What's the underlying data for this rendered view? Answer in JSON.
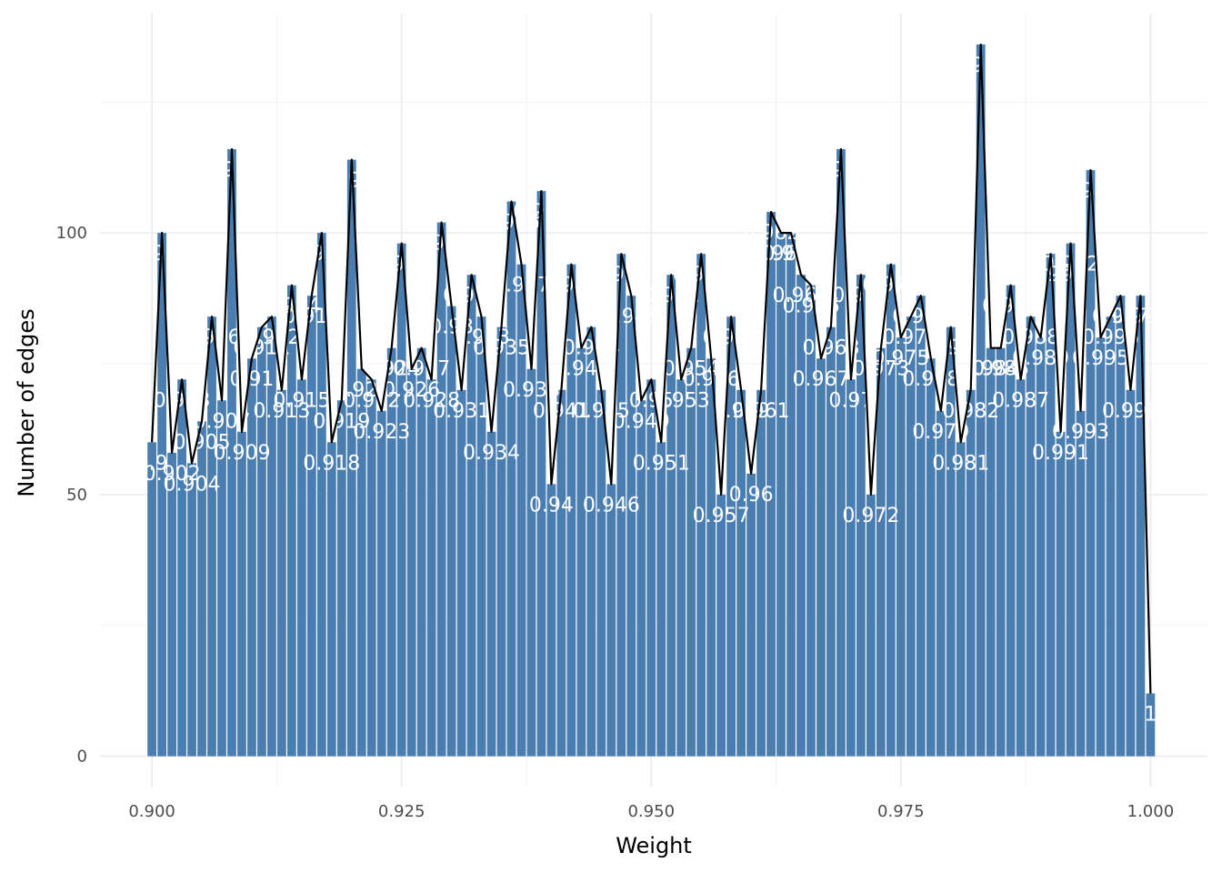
{
  "chart_data": {
    "type": "bar",
    "title": "",
    "xlabel": "Weight",
    "ylabel": "Number of edges",
    "xlim": [
      0.8948,
      1.0057
    ],
    "ylim": [
      -5.8,
      141.9
    ],
    "x_ticks": [
      "0.900",
      "0.925",
      "0.950",
      "0.975",
      "1.000"
    ],
    "x_tick_values": [
      0.9,
      0.925,
      0.95,
      0.975,
      1.0
    ],
    "y_ticks": [
      "0",
      "50",
      "100"
    ],
    "y_tick_values": [
      0,
      50,
      100
    ],
    "grid": true,
    "legend": "none",
    "bar_color": "#4A7EB0",
    "line_color": "#000000",
    "label_color": "#ffffff",
    "series": [
      {
        "x": [
          0.9,
          0.901,
          0.902,
          0.903,
          0.904,
          0.905,
          0.906,
          0.907,
          0.908,
          0.909,
          0.91,
          0.911,
          0.912,
          0.913,
          0.914,
          0.915,
          0.916,
          0.917,
          0.918,
          0.919,
          0.92,
          0.921,
          0.922,
          0.923,
          0.924,
          0.925,
          0.926,
          0.927,
          0.928,
          0.929,
          0.93,
          0.931,
          0.932,
          0.933,
          0.934,
          0.935,
          0.936,
          0.937,
          0.938,
          0.939,
          0.94,
          0.941,
          0.942,
          0.943,
          0.944,
          0.945,
          0.946,
          0.947,
          0.948,
          0.949,
          0.95,
          0.951,
          0.952,
          0.953,
          0.954,
          0.955,
          0.956,
          0.957,
          0.958,
          0.959,
          0.96,
          0.961,
          0.962,
          0.963,
          0.964,
          0.965,
          0.966,
          0.967,
          0.968,
          0.969,
          0.97,
          0.971,
          0.972,
          0.973,
          0.974,
          0.975,
          0.976,
          0.977,
          0.978,
          0.979,
          0.98,
          0.981,
          0.982,
          0.983,
          0.984,
          0.985,
          0.986,
          0.987,
          0.988,
          0.989,
          0.99,
          0.991,
          0.992,
          0.993,
          0.994,
          0.995,
          0.996,
          0.997,
          0.998,
          0.999,
          1.0
        ],
        "values": [
          60,
          100,
          58,
          72,
          56,
          64,
          84,
          68,
          116,
          62,
          76,
          82,
          84,
          70,
          90,
          72,
          88,
          100,
          60,
          68,
          114,
          74,
          72,
          66,
          78,
          98,
          74,
          78,
          72,
          102,
          86,
          70,
          92,
          84,
          62,
          82,
          106,
          94,
          74,
          108,
          52,
          70,
          94,
          78,
          82,
          70,
          52,
          96,
          88,
          68,
          72,
          60,
          92,
          72,
          78,
          96,
          76,
          50,
          84,
          70,
          54,
          70,
          104,
          100,
          100,
          92,
          90,
          76,
          82,
          116,
          72,
          92,
          50,
          78,
          94,
          80,
          84,
          88,
          76,
          66,
          82,
          60,
          70,
          136,
          78,
          78,
          90,
          72,
          84,
          80,
          96,
          62,
          98,
          66,
          112,
          80,
          84,
          88,
          70,
          88,
          12
        ]
      }
    ],
    "data_labels": [
      "0.9",
      "0.901",
      "0.902",
      "0.903",
      "0.904",
      "0.905",
      "0.906",
      "0.907",
      "0.908",
      "0.909",
      "0.91",
      "0.911",
      "0.912",
      "0.913",
      "0.914",
      "0.915",
      "0.916",
      "0.917",
      "0.918",
      "0.919",
      "0.92",
      "0.921",
      "0.922",
      "0.923",
      "0.924",
      "0.925",
      "0.926",
      "0.927",
      "0.928",
      "0.929",
      "0.93",
      "0.931",
      "0.932",
      "0.933",
      "0.934",
      "0.935",
      "0.936",
      "0.937",
      "0.938",
      "0.939",
      "0.94",
      "0.941",
      "0.942",
      "0.943",
      "0.944",
      "0.945",
      "0.946",
      "0.947",
      "0.948",
      "0.949",
      "0.95",
      "0.951",
      "0.952",
      "0.953",
      "0.954",
      "0.955",
      "0.956",
      "0.957",
      "0.958",
      "0.959",
      "0.96",
      "0.961",
      "0.962",
      "0.963",
      "0.964",
      "0.965",
      "0.966",
      "0.967",
      "0.968",
      "0.969",
      "0.97",
      "0.971",
      "0.972",
      "0.973",
      "0.974",
      "0.975",
      "0.976",
      "0.977",
      "0.978",
      "0.979",
      "0.98",
      "0.981",
      "0.982",
      "0.983",
      "0.984",
      "0.985",
      "0.986",
      "0.987",
      "0.988",
      "0.989",
      "0.99",
      "0.991",
      "0.992",
      "0.993",
      "0.994",
      "0.995",
      "0.996",
      "0.997",
      "0.998",
      "0.999",
      "1"
    ]
  }
}
